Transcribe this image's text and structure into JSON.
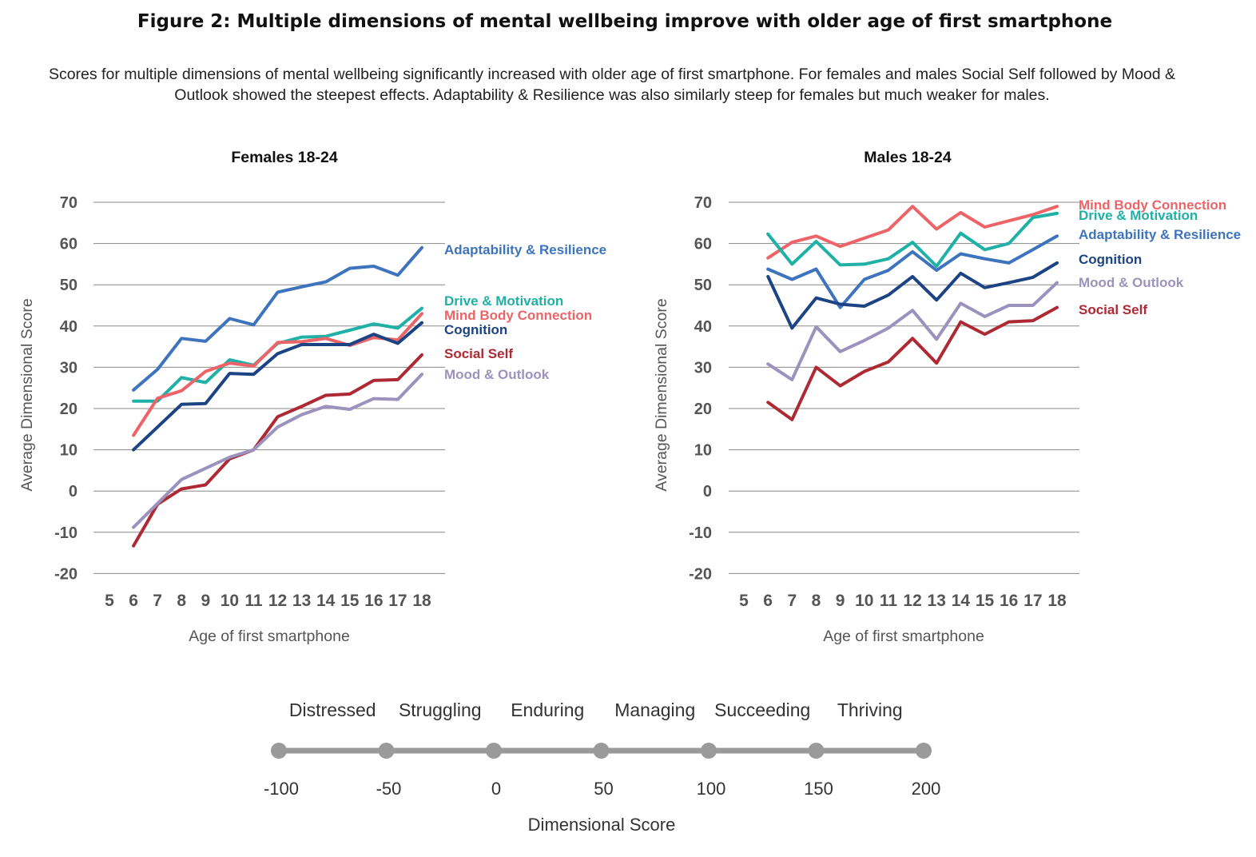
{
  "figure": {
    "title": "Figure 2:  Multiple dimensions of mental wellbeing improve with older age of first smartphone",
    "subtitle": "Scores for multiple dimensions of mental wellbeing significantly increased with older age of first smartphone. For females and males Social Self followed by Mood & Outlook showed the steepest effects. Adaptability & Resilience was also similarly steep for females but much weaker for males."
  },
  "colors": {
    "Adaptability & Resilience": "#3d74bd",
    "Drive & Motivation": "#1fb0a6",
    "Mind Body Connection": "#ec6468",
    "Cognition": "#1c4485",
    "Social Self": "#ad2a34",
    "Mood & Outlook": "#9b92bd",
    "axis_text": "#555555",
    "grid": "#888888",
    "scale": "#9a9a9a"
  },
  "chart_data": [
    {
      "type": "line",
      "title": "Females 18-24",
      "xlabel": "Age of first smartphone",
      "ylabel": "Average Dimensional Score",
      "x_ticks": [
        5,
        6,
        7,
        8,
        9,
        10,
        11,
        12,
        13,
        14,
        15,
        16,
        17,
        18
      ],
      "ylim": [
        -20,
        70
      ],
      "y_ticks": [
        70,
        60,
        50,
        40,
        30,
        20,
        10,
        0,
        -10,
        -20
      ],
      "grid": "horizontal",
      "legend": "end-of-line labels",
      "x": [
        6,
        7,
        8,
        9,
        10,
        11,
        12,
        13,
        14,
        15,
        16,
        17,
        18
      ],
      "series": [
        {
          "name": "Adaptability & Resilience",
          "values": [
            24.5,
            29.5,
            37,
            36.3,
            41.8,
            40.3,
            48.2,
            49.5,
            50.7,
            54,
            54.5,
            52.3,
            59
          ]
        },
        {
          "name": "Drive & Motivation",
          "values": [
            21.8,
            21.8,
            27.5,
            26.3,
            31.8,
            30.5,
            35.8,
            37.3,
            37.5,
            39,
            40.5,
            39.5,
            44.3
          ]
        },
        {
          "name": "Mind Body Connection",
          "values": [
            13.5,
            22.5,
            24.3,
            29,
            31,
            30.3,
            36,
            36.2,
            37,
            35.3,
            37.2,
            36.6,
            43
          ]
        },
        {
          "name": "Cognition",
          "values": [
            10,
            15.5,
            21,
            21.2,
            28.5,
            28.3,
            33.3,
            35.5,
            35.5,
            35.5,
            38,
            35.8,
            40.8
          ]
        },
        {
          "name": "Social Self",
          "values": [
            -13.3,
            -3.2,
            0.5,
            1.5,
            7.8,
            10,
            18,
            20.5,
            23.2,
            23.5,
            26.8,
            27,
            33
          ]
        },
        {
          "name": "Mood & Outlook",
          "values": [
            -8.8,
            -3,
            2.8,
            5.5,
            8.2,
            10,
            15.5,
            18.5,
            20.5,
            19.8,
            22.4,
            22.2,
            28.3
          ]
        }
      ]
    },
    {
      "type": "line",
      "title": "Males 18-24",
      "xlabel": "Age of first smartphone",
      "ylabel": "Average Dimensional Score",
      "x_ticks": [
        5,
        6,
        7,
        8,
        9,
        10,
        11,
        12,
        13,
        14,
        15,
        16,
        17,
        18
      ],
      "ylim": [
        -20,
        70
      ],
      "y_ticks": [
        70,
        60,
        50,
        40,
        30,
        20,
        10,
        0,
        -10,
        -20
      ],
      "grid": "horizontal",
      "legend": "end-of-line labels",
      "x": [
        6,
        7,
        8,
        9,
        10,
        11,
        12,
        13,
        14,
        15,
        16,
        17,
        18
      ],
      "series": [
        {
          "name": "Mind Body Connection",
          "values": [
            56.5,
            60.3,
            61.8,
            59.3,
            61.3,
            63.3,
            69,
            63.5,
            67.5,
            64,
            65.5,
            67,
            69
          ]
        },
        {
          "name": "Drive & Motivation",
          "values": [
            62.3,
            55,
            60.5,
            54.8,
            55,
            56.3,
            60.3,
            54.5,
            62.5,
            58.5,
            60,
            66.3,
            67.3
          ]
        },
        {
          "name": "Adaptability & Resilience",
          "values": [
            53.8,
            51.3,
            53.8,
            44.5,
            51.3,
            53.5,
            58,
            53.5,
            57.5,
            56.3,
            55.3,
            58.5,
            61.8
          ]
        },
        {
          "name": "Cognition",
          "values": [
            52,
            39.5,
            46.8,
            45.3,
            44.8,
            47.5,
            52,
            46.3,
            52.8,
            49.3,
            50.5,
            51.8,
            55.3
          ]
        },
        {
          "name": "Mood & Outlook",
          "values": [
            30.8,
            27,
            39.8,
            33.8,
            36.5,
            39.5,
            43.8,
            36.8,
            45.5,
            42.3,
            45,
            45,
            50.5
          ]
        },
        {
          "name": "Social Self",
          "values": [
            21.5,
            17.3,
            30,
            25.5,
            29,
            31.3,
            37,
            31,
            41,
            38,
            41,
            41.3,
            44.5
          ]
        }
      ]
    }
  ],
  "scale": {
    "title": "Dimensional Score",
    "categories": [
      "Distressed",
      "Struggling",
      "Enduring",
      "Managing",
      "Succeeding",
      "Thriving"
    ],
    "ticks": [
      -100,
      -50,
      0,
      50,
      100,
      150,
      200
    ]
  }
}
